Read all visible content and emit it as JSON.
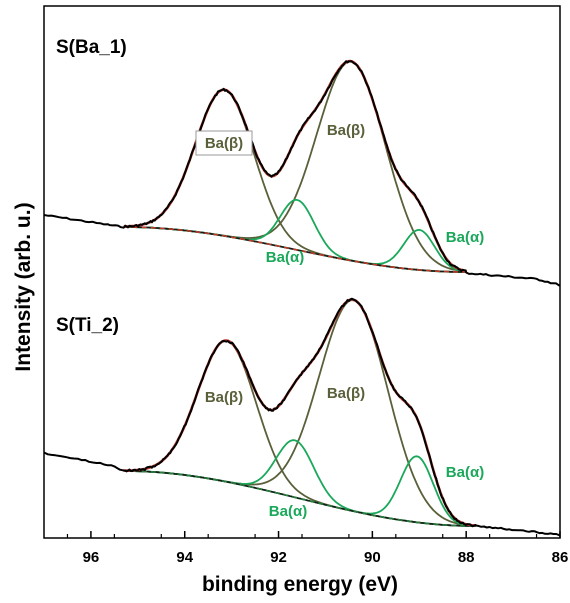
{
  "chart_data": {
    "type": "line",
    "xlabel": "binding energy (eV)",
    "ylabel": "Intensity (arb. u.)",
    "xlim": [
      97,
      86
    ],
    "x_reversed": true,
    "xticks": [
      96,
      94,
      92,
      90,
      88,
      86
    ],
    "yticks": [],
    "grid": false,
    "colors": {
      "measured": "#000000",
      "fit_envelope": "#c0392b",
      "beta_component": "#59603a",
      "alpha_component": "#1aa85a",
      "background_dash": "#2b7a3c"
    },
    "panels": [
      {
        "label": "S(Ba_1)",
        "peak_labels": [
          {
            "text": "Ba(β)",
            "x": 93.2,
            "boxed": true,
            "color": "#59603a"
          },
          {
            "text": "Ba(β)",
            "x": 90.9,
            "boxed": false,
            "color": "#59603a"
          },
          {
            "text": "Ba(α)",
            "x": 88.5,
            "boxed": false,
            "color": "#1aa85a"
          },
          {
            "text": "Ba(α)",
            "x": 91.3,
            "boxed": false,
            "color": "#1aa85a"
          }
        ]
      },
      {
        "label": "S(Ti_2)",
        "peak_labels": [
          {
            "text": "Ba(β)",
            "x": 93.2,
            "boxed": false,
            "color": "#59603a"
          },
          {
            "text": "Ba(β)",
            "x": 90.9,
            "boxed": false,
            "color": "#59603a"
          },
          {
            "text": "Ba(α)",
            "x": 88.5,
            "boxed": false,
            "color": "#1aa85a"
          },
          {
            "text": "Ba(α)",
            "x": 91.2,
            "boxed": false,
            "color": "#1aa85a"
          }
        ]
      }
    ]
  }
}
